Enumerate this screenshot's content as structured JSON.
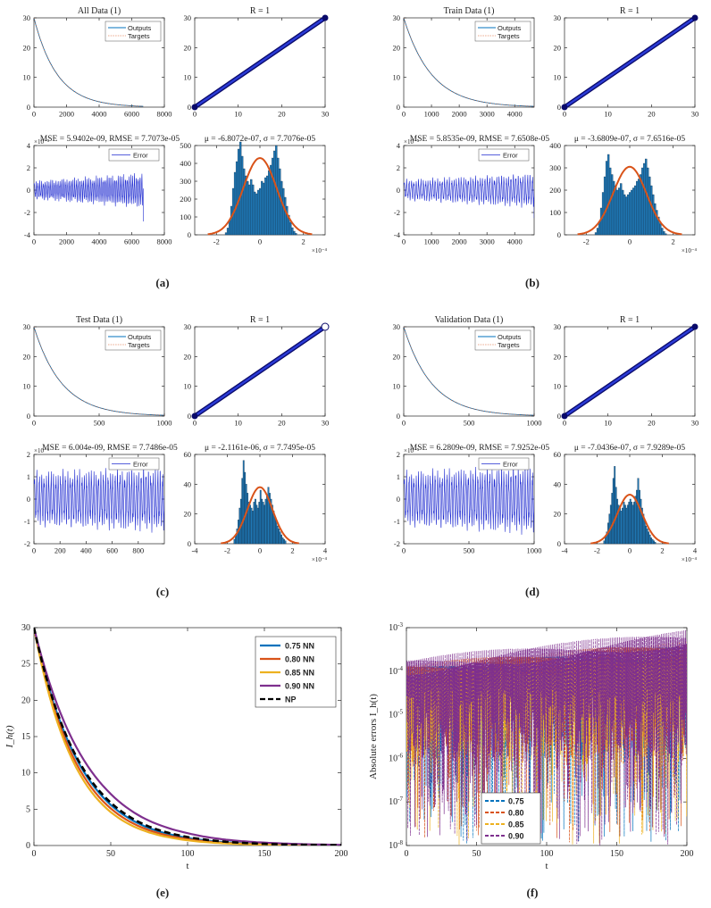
{
  "panels": [
    {
      "id": "a",
      "label": "(a)",
      "time": {
        "title": "All Data (1)",
        "xlim": [
          0,
          8000
        ],
        "xticks": [
          0,
          2000,
          4000,
          6000,
          8000
        ],
        "ylim": [
          0,
          30
        ],
        "yticks": [
          0,
          10,
          20,
          30
        ],
        "n": 6700,
        "legend": [
          "Outputs",
          "Targets"
        ]
      },
      "reg": {
        "title": "R = 1",
        "lim": [
          0,
          30
        ],
        "ticks": [
          0,
          10,
          20,
          30
        ],
        "open_last": false
      },
      "err": {
        "title": "MSE = 5.9402e-09, RMSE = 7.7073e-05",
        "exp": "×10⁻⁵",
        "xlim": [
          0,
          8000
        ],
        "xticks": [
          0,
          2000,
          4000,
          6000,
          8000
        ],
        "ylim": [
          -4,
          4
        ],
        "yticks": [
          -4,
          -2,
          0,
          2,
          4
        ],
        "n": 6700,
        "legend": "Error",
        "cycles": 60,
        "amp_start": 0.8,
        "amp_end": 1.5,
        "drop": -2.8
      },
      "hist": {
        "title": "μ = -6.8072e-07, σ = 7.7076e-05",
        "xlim": [
          -3,
          3
        ],
        "xticks": [
          -2,
          0,
          2
        ],
        "ylim": [
          0,
          500
        ],
        "yticks": [
          0,
          100,
          200,
          300,
          400,
          500
        ],
        "xexp": "×10⁻⁴",
        "range": [
          -1.6,
          1.7
        ],
        "peak": 430,
        "bins": 40,
        "heights": [
          12,
          38,
          80,
          160,
          260,
          350,
          410,
          480,
          520,
          440,
          370,
          330,
          300,
          280,
          310,
          280,
          240,
          230,
          250,
          260,
          300,
          290,
          320,
          330,
          360,
          390,
          430,
          470,
          500,
          430,
          370,
          300,
          260,
          210,
          160,
          110,
          70,
          40,
          20,
          8
        ]
      }
    },
    {
      "id": "b",
      "label": "(b)",
      "time": {
        "title": "Train Data (1)",
        "xlim": [
          0,
          4700
        ],
        "xticks": [
          0,
          1000,
          2000,
          3000,
          4000
        ],
        "ylim": [
          0,
          30
        ],
        "yticks": [
          0,
          10,
          20,
          30
        ],
        "n": 4700,
        "legend": [
          "Outputs",
          "Targets"
        ]
      },
      "reg": {
        "title": "R = 1",
        "lim": [
          0,
          30
        ],
        "ticks": [
          0,
          10,
          20,
          30
        ],
        "open_last": false
      },
      "err": {
        "title": "MSE = 5.8535e-09, RMSE = 7.6508e-05",
        "exp": "×10⁻⁵",
        "xlim": [
          0,
          4700
        ],
        "xticks": [
          0,
          1000,
          2000,
          3000,
          4000
        ],
        "ylim": [
          -4,
          4
        ],
        "yticks": [
          -4,
          -2,
          0,
          2,
          4
        ],
        "n": 4700,
        "legend": "Error",
        "cycles": 55,
        "amp_start": 0.9,
        "amp_end": 1.5,
        "drop": -2.5
      },
      "hist": {
        "title": "μ = -3.6809e-07, σ = 7.6516e-05",
        "xlim": [
          -3,
          3
        ],
        "xticks": [
          -2,
          0,
          2
        ],
        "ylim": [
          0,
          400
        ],
        "yticks": [
          0,
          100,
          200,
          300,
          400
        ],
        "xexp": "×10⁻⁴",
        "range": [
          -1.6,
          1.7
        ],
        "peak": 305,
        "bins": 40,
        "heights": [
          10,
          30,
          60,
          120,
          190,
          260,
          330,
          360,
          300,
          270,
          240,
          220,
          200,
          210,
          230,
          200,
          180,
          170,
          180,
          190,
          200,
          210,
          220,
          240,
          250,
          270,
          300,
          320,
          340,
          300,
          260,
          220,
          180,
          140,
          110,
          80,
          50,
          30,
          15,
          5
        ]
      }
    },
    {
      "id": "c",
      "label": "(c)",
      "time": {
        "title": "Test Data (1)",
        "xlim": [
          0,
          1000
        ],
        "xticks": [
          0,
          500,
          1000
        ],
        "ylim": [
          0,
          30
        ],
        "yticks": [
          0,
          10,
          20,
          30
        ],
        "n": 1000,
        "legend": [
          "Outputs",
          "Targets"
        ]
      },
      "reg": {
        "title": "R = 1",
        "lim": [
          0,
          30
        ],
        "ticks": [
          0,
          10,
          20,
          30
        ],
        "open_last": true
      },
      "err": {
        "title": "MSE = 6.004e-09, RMSE = 7.7486e-05",
        "exp": "×10⁻⁵",
        "xlim": [
          0,
          1000
        ],
        "xticks": [
          0,
          200,
          400,
          600,
          800
        ],
        "ylim": [
          -2,
          2
        ],
        "yticks": [
          -2,
          -1,
          0,
          1,
          2
        ],
        "n": 1000,
        "legend": "Error",
        "cycles": 55,
        "amp_start": 1.2,
        "amp_end": 1.4,
        "drop": 0
      },
      "hist": {
        "title": "μ = -2.1161e-06, σ = 7.7495e-05",
        "xlim": [
          -4,
          4
        ],
        "xticks": [
          -4,
          -2,
          0,
          2,
          4
        ],
        "ylim": [
          0,
          60
        ],
        "yticks": [
          0,
          20,
          40,
          60
        ],
        "xexp": "×10⁻⁴",
        "range": [
          -1.6,
          1.6
        ],
        "peak": 38,
        "bins": 40,
        "heights": [
          3,
          6,
          10,
          16,
          24,
          30,
          44,
          56,
          48,
          40,
          34,
          28,
          26,
          24,
          22,
          28,
          30,
          26,
          24,
          28,
          36,
          30,
          28,
          26,
          30,
          32,
          38,
          34,
          30,
          26,
          22,
          18,
          16,
          12,
          10,
          8,
          6,
          4,
          3,
          2
        ]
      }
    },
    {
      "id": "d",
      "label": "(d)",
      "time": {
        "title": "Validation Data (1)",
        "xlim": [
          0,
          1000
        ],
        "xticks": [
          0,
          500,
          1000
        ],
        "ylim": [
          0,
          30
        ],
        "yticks": [
          0,
          10,
          20,
          30
        ],
        "n": 1000,
        "legend": [
          "Outputs",
          "Targets"
        ]
      },
      "reg": {
        "title": "R = 1",
        "lim": [
          0,
          30
        ],
        "ticks": [
          0,
          10,
          20,
          30
        ],
        "open_last": false
      },
      "err": {
        "title": "MSE = 6.2809e-09, RMSE = 7.9252e-05",
        "exp": "×10⁻⁵",
        "xlim": [
          0,
          1000
        ],
        "xticks": [
          0,
          500,
          1000
        ],
        "ylim": [
          -2,
          2
        ],
        "yticks": [
          -2,
          -1,
          0,
          1,
          2
        ],
        "n": 1000,
        "legend": "Error",
        "cycles": 55,
        "amp_start": 1.2,
        "amp_end": 1.5,
        "drop": 0
      },
      "hist": {
        "title": "μ = -7.0436e-07, σ = 7.9289e-05",
        "xlim": [
          -4,
          4
        ],
        "xticks": [
          -4,
          -2,
          0,
          2,
          4
        ],
        "ylim": [
          0,
          60
        ],
        "yticks": [
          0,
          20,
          40,
          60
        ],
        "xexp": "×10⁻⁴",
        "range": [
          -1.6,
          1.6
        ],
        "peak": 33,
        "bins": 40,
        "heights": [
          2,
          5,
          8,
          14,
          20,
          26,
          34,
          44,
          52,
          38,
          30,
          26,
          24,
          22,
          24,
          28,
          26,
          24,
          26,
          28,
          30,
          28,
          26,
          28,
          32,
          36,
          44,
          36,
          30,
          24,
          20,
          16,
          12,
          10,
          8,
          6,
          4,
          3,
          2,
          1
        ]
      }
    }
  ],
  "chart_data": [
    {
      "id": "e",
      "label": "(e)",
      "type": "line",
      "xlabel": "t",
      "ylabel": "I_h(t)",
      "xlim": [
        0,
        200
      ],
      "xticks": [
        0,
        50,
        100,
        150,
        200
      ],
      "ylim": [
        0,
        30
      ],
      "yticks": [
        0,
        5,
        10,
        15,
        20,
        25,
        30
      ],
      "legend_position": "top-right",
      "series": [
        {
          "name": "0.75 NN",
          "color": "#0072BD",
          "x": [
            0,
            25,
            50,
            75,
            100,
            125,
            150,
            175,
            200
          ],
          "values": [
            30,
            13.1,
            5.6,
            2.4,
            1.05,
            0.45,
            0.2,
            0.08,
            0.03
          ]
        },
        {
          "name": "0.80 NN",
          "color": "#D95319",
          "x": [
            0,
            25,
            50,
            75,
            100,
            125,
            150,
            175,
            200
          ],
          "values": [
            30,
            12.4,
            5.1,
            2.1,
            0.88,
            0.36,
            0.15,
            0.06,
            0.02
          ]
        },
        {
          "name": "0.85 NN",
          "color": "#EDB120",
          "x": [
            0,
            25,
            50,
            75,
            100,
            125,
            150,
            175,
            200
          ],
          "values": [
            30,
            11.8,
            4.6,
            1.8,
            0.72,
            0.28,
            0.11,
            0.04,
            0.02
          ]
        },
        {
          "name": "0.90 NN",
          "color": "#7E2F8E",
          "x": [
            0,
            25,
            50,
            75,
            100,
            125,
            150,
            175,
            200
          ],
          "values": [
            30,
            14.6,
            7.1,
            3.4,
            1.7,
            0.8,
            0.4,
            0.19,
            0.09
          ]
        },
        {
          "name": "NP",
          "color": "#000000",
          "x": [
            0,
            25,
            50,
            75,
            100,
            125,
            150,
            175,
            200
          ],
          "values": [
            30,
            13.3,
            5.9,
            2.6,
            1.17,
            0.52,
            0.23,
            0.1,
            0.05
          ]
        }
      ]
    },
    {
      "id": "f",
      "label": "(f)",
      "type": "line",
      "xlabel": "t",
      "ylabel": "Absolute errors I_h(t)",
      "xlim": [
        0,
        200
      ],
      "xticks": [
        0,
        50,
        100,
        150,
        200
      ],
      "ylim": [
        1e-08,
        0.001
      ],
      "yscale": "log",
      "yticks": [
        -8,
        -7,
        -6,
        -5,
        -4,
        -3
      ],
      "legend_position": "bottom-left",
      "series": [
        {
          "name": "0.75",
          "color": "#0072BD",
          "top_start": 0.00012,
          "top_end": 0.0004,
          "deep": 0.28
        },
        {
          "name": "0.80",
          "color": "#D95319",
          "top_start": 0.00015,
          "top_end": 0.0005,
          "deep": 0.22
        },
        {
          "name": "0.85",
          "color": "#EDB120",
          "top_start": 0.0001,
          "top_end": 0.0003,
          "deep": 0.25
        },
        {
          "name": "0.90",
          "color": "#7E2F8E",
          "top_start": 0.0002,
          "top_end": 0.0009,
          "deep": 0.35
        }
      ]
    }
  ]
}
